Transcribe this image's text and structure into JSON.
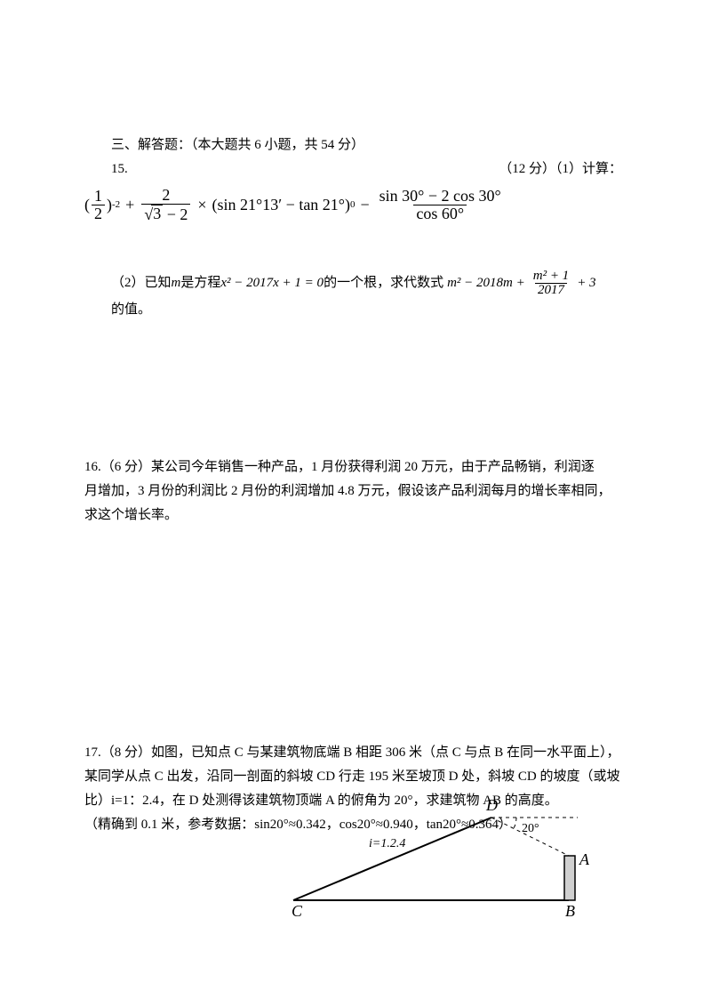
{
  "section_header": "三、解答题：（本大题共 6 小题，共 54 分）",
  "q15": {
    "num": "15.",
    "right": "（12 分）（1）计算：",
    "expr1": {
      "p1_frac_num": "1",
      "p1_frac_den": "2",
      "p1_exp": "-2",
      "plus1": "+",
      "p2_frac_num": "2",
      "p2_sqrt": "3",
      "p2_after_sqrt": " − 2",
      "times": "×",
      "p3_inner": "(sin 21°13′ − tan 21°)",
      "p3_exp": "0",
      "minus": "−",
      "p4_num": "sin 30° − 2 cos 30°",
      "p4_den": "cos 60°"
    },
    "part2_prefix": "（2）已知 ",
    "part2_m": "m",
    "part2_mid1": " 是方程 ",
    "part2_eq": "x² − 2017x + 1 = 0",
    "part2_mid2": " 的一个根，求代数式 ",
    "expr2": {
      "t1": "m² − 2018m +",
      "frac_num": "m² + 1",
      "frac_den": "2017",
      "t2": "+ 3"
    },
    "part2_suffix": " 的值。"
  },
  "q16": {
    "l1": "16.（6 分）某公司今年销售一种产品，1 月份获得利润 20 万元，由于产品畅销，利润逐",
    "l2": "月增加，3 月份的利润比 2 月份的利润增加 4.8 万元，假设该产品利润每月的增长率相同，",
    "l3": "求这个增长率。"
  },
  "q17": {
    "l1": "17.（8 分）如图，已知点 C 与某建筑物底端 B 相距 306 米（点 C 与点 B 在同一水平面上），",
    "l2": "某同学从点 C 出发，沿同一剖面的斜坡 CD 行走 195 米至坡顶 D 处，斜坡 CD 的坡度（或坡",
    "l3": "比）i=1：2.4，在 D 处测得该建筑物顶端 A 的俯角为 20°，求建筑物 AB 的高度。",
    "l4": "（精确到 0.1 米，参考数据：sin20°≈0.342，cos20°≈0.940，tan20°≈0.364）"
  },
  "figure": {
    "i_label": "i=1.2.4",
    "lbl_C": "C",
    "lbl_D": "D",
    "lbl_B": "B",
    "lbl_A": "A",
    "angle": "20°",
    "stroke": "#000000",
    "fill_building": "#d0d0d0",
    "dash": "4,4",
    "font_main": 18,
    "font_small": 14
  }
}
